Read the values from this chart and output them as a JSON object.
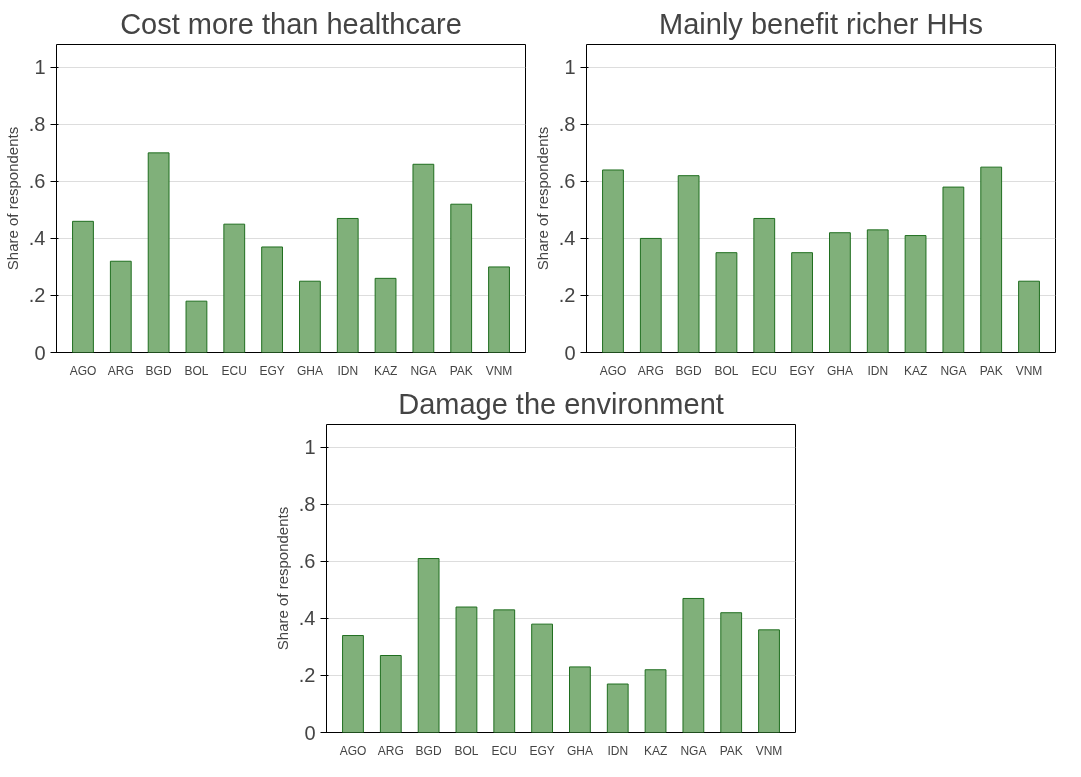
{
  "chart_data": [
    {
      "type": "bar",
      "title": "Cost more than healthcare",
      "ylabel": "Share of respondents",
      "categories": [
        "AGO",
        "ARG",
        "BGD",
        "BOL",
        "ECU",
        "EGY",
        "GHA",
        "IDN",
        "KAZ",
        "NGA",
        "PAK",
        "VNM"
      ],
      "values": [
        0.46,
        0.32,
        0.7,
        0.18,
        0.45,
        0.37,
        0.25,
        0.47,
        0.26,
        0.66,
        0.52,
        0.3
      ],
      "color": "#80b07a",
      "ylim": [
        0,
        1.08
      ],
      "yticks": [
        0,
        {
          "value": 0.2,
          "label": ".2"
        },
        {
          "value": 0.4,
          "label": ".4"
        },
        {
          "value": 0.6,
          "label": ".6"
        },
        {
          "value": 0.8,
          "label": ".8"
        },
        1
      ],
      "grid": "y"
    },
    {
      "type": "bar",
      "title": "Mainly benefit richer HHs",
      "ylabel": "Share of respondents",
      "categories": [
        "AGO",
        "ARG",
        "BGD",
        "BOL",
        "ECU",
        "EGY",
        "GHA",
        "IDN",
        "KAZ",
        "NGA",
        "PAK",
        "VNM"
      ],
      "values": [
        0.64,
        0.4,
        0.62,
        0.35,
        0.47,
        0.35,
        0.42,
        0.43,
        0.41,
        0.58,
        0.65,
        0.25
      ],
      "color": "#80b07a",
      "ylim": [
        0,
        1.08
      ],
      "yticks": [
        0,
        {
          "value": 0.2,
          "label": ".2"
        },
        {
          "value": 0.4,
          "label": ".4"
        },
        {
          "value": 0.6,
          "label": ".6"
        },
        {
          "value": 0.8,
          "label": ".8"
        },
        1
      ],
      "grid": "y"
    },
    {
      "type": "bar",
      "title": "Damage the environment",
      "ylabel": "Share of respondents",
      "categories": [
        "AGO",
        "ARG",
        "BGD",
        "BOL",
        "ECU",
        "EGY",
        "GHA",
        "IDN",
        "KAZ",
        "NGA",
        "PAK",
        "VNM"
      ],
      "values": [
        0.34,
        0.27,
        0.61,
        0.44,
        0.43,
        0.38,
        0.23,
        0.17,
        0.22,
        0.47,
        0.42,
        0.36
      ],
      "color": "#80b07a",
      "ylim": [
        0,
        1.08
      ],
      "yticks": [
        0,
        {
          "value": 0.2,
          "label": ".2"
        },
        {
          "value": 0.4,
          "label": ".4"
        },
        {
          "value": 0.6,
          "label": ".6"
        },
        {
          "value": 0.8,
          "label": ".8"
        },
        1
      ],
      "grid": "y"
    }
  ]
}
